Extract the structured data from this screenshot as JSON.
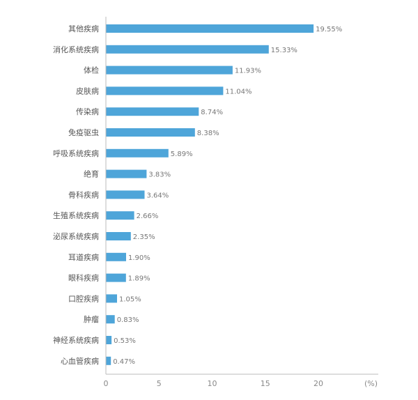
{
  "chart_data": {
    "type": "bar",
    "orientation": "horizontal",
    "categories": [
      "其他疾病",
      "消化系统疾病",
      "体检",
      "皮肤病",
      "传染病",
      "免疫驱虫",
      "呼吸系统疾病",
      "绝育",
      "骨科疾病",
      "生殖系统疾病",
      "泌尿系统疾病",
      "耳道疾病",
      "眼科疾病",
      "口腔疾病",
      "肿瘤",
      "神经系统疾病",
      "心血管疾病"
    ],
    "values": [
      19.55,
      15.33,
      11.93,
      11.04,
      8.74,
      8.38,
      5.89,
      3.83,
      3.64,
      2.66,
      2.35,
      1.9,
      1.89,
      1.05,
      0.83,
      0.53,
      0.47
    ],
    "value_labels": [
      "19.55%",
      "15.33%",
      "11.93%",
      "11.04%",
      "8.74%",
      "8.38%",
      "5.89%",
      "3.83%",
      "3.64%",
      "2.66%",
      "2.35%",
      "1.90%",
      "1.89%",
      "1.05%",
      "0.83%",
      "0.53%",
      "0.47%"
    ],
    "xticks": [
      "0",
      "5",
      "10",
      "15",
      "20"
    ],
    "xtick_values": [
      0,
      5,
      10,
      15,
      20
    ],
    "xlim": [
      0,
      25
    ],
    "unit": "(%)",
    "title": "",
    "xlabel": "",
    "ylabel": "",
    "grid": false,
    "bar_color": "#4ea5d9",
    "axis_color": "#bbbbbb"
  }
}
